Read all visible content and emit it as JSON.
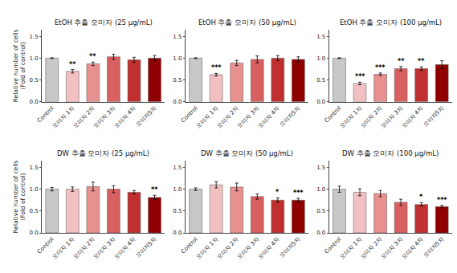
{
  "chart_data": [
    {
      "type": "bar",
      "title": "EtOH 추출 오미자 (25 μg/mL)",
      "categories": [
        "Control",
        "오미자 1차",
        "오미자 2차",
        "오미자 3차",
        "오미자 4차",
        "오미자5차"
      ],
      "values": [
        1.0,
        0.7,
        0.87,
        1.03,
        0.96,
        1.0
      ],
      "errors": [
        0.01,
        0.04,
        0.04,
        0.06,
        0.06,
        0.06
      ],
      "significance": [
        null,
        "**",
        "**",
        null,
        null,
        null
      ],
      "colors": [
        "#c8c8c8",
        "#f2c0c0",
        "#e89090",
        "#d96060",
        "#c03030",
        "#900000"
      ],
      "ylabel": "Relative number of cells\n(Fold of control)",
      "ylim": [
        0.0,
        1.65
      ],
      "yticks": [
        {
          "value": 0.0,
          "label": "0.0"
        },
        0.5,
        {
          "value": 1.0,
          "label": "1.0"
        },
        1.5
      ],
      "grid": false
    },
    {
      "type": "bar",
      "title": "EtOH 추출 오미자 (50 μg/mL)",
      "categories": [
        "Control",
        "오미자 1차",
        "오미자 2차",
        "오미자 3차",
        "오미자 4차",
        "오미자5차"
      ],
      "values": [
        1.0,
        0.62,
        0.89,
        0.97,
        1.0,
        0.97
      ],
      "errors": [
        0.01,
        0.03,
        0.06,
        0.08,
        0.06,
        0.06
      ],
      "significance": [
        null,
        "***",
        null,
        null,
        null,
        null
      ],
      "colors": [
        "#c8c8c8",
        "#f2c0c0",
        "#e89090",
        "#d96060",
        "#c03030",
        "#900000"
      ],
      "ylim": [
        0.0,
        1.65
      ],
      "yticks": [
        {
          "value": 0.0,
          "label": "0.0"
        },
        0.5,
        {
          "value": 1.0,
          "label": "1.0"
        },
        1.5
      ],
      "grid": false
    },
    {
      "type": "bar",
      "title": "EtOH 추출 오미자 (100 μg/mL)",
      "categories": [
        "Control",
        "오미자 1차",
        "오미자 2차",
        "오미자 3차",
        "오미자 4차",
        "오미자5차"
      ],
      "values": [
        1.0,
        0.42,
        0.63,
        0.76,
        0.76,
        0.85
      ],
      "errors": [
        0.01,
        0.03,
        0.03,
        0.05,
        0.04,
        0.09
      ],
      "significance": [
        null,
        "***",
        "***",
        "**",
        "**",
        null
      ],
      "colors": [
        "#c8c8c8",
        "#f2c0c0",
        "#e89090",
        "#d96060",
        "#c03030",
        "#900000"
      ],
      "ylim": [
        0.0,
        1.65
      ],
      "yticks": [
        {
          "value": 0.0,
          "label": "0.0"
        },
        0.5,
        {
          "value": 1.0,
          "label": "1.0"
        },
        1.5
      ],
      "grid": false
    },
    {
      "type": "bar",
      "title": "DW 추출 오미자 (25 μg/mL)",
      "categories": [
        "Control",
        "오미자 1차",
        "오미자 2차",
        "오미자 3차",
        "오미자 4차",
        "오미자5차"
      ],
      "values": [
        1.0,
        1.0,
        1.06,
        1.0,
        0.93,
        0.81
      ],
      "errors": [
        0.04,
        0.05,
        0.1,
        0.08,
        0.04,
        0.05
      ],
      "significance": [
        null,
        null,
        null,
        null,
        null,
        "**"
      ],
      "colors": [
        "#c8c8c8",
        "#f2c0c0",
        "#e89090",
        "#d96060",
        "#c03030",
        "#900000"
      ],
      "ylabel": "Relative number of cells\n(Fold of control)",
      "ylim": [
        0.0,
        1.65
      ],
      "yticks": [
        {
          "value": 0.0,
          "label": "0.0"
        },
        0.5,
        {
          "value": 1.0,
          "label": "1.0"
        },
        1.5
      ],
      "grid": false
    },
    {
      "type": "bar",
      "title": "DW 추출 오미자 (50 μg/mL)",
      "categories": [
        "Control",
        "오미자 1차",
        "오미자 2차",
        "오미자 3차",
        "오미자 4차",
        "오미자5차"
      ],
      "values": [
        1.0,
        1.1,
        1.05,
        0.83,
        0.75,
        0.75
      ],
      "errors": [
        0.03,
        0.07,
        0.09,
        0.06,
        0.05,
        0.04
      ],
      "significance": [
        null,
        null,
        null,
        null,
        "*",
        "***"
      ],
      "colors": [
        "#c8c8c8",
        "#f2c0c0",
        "#e89090",
        "#d96060",
        "#c03030",
        "#900000"
      ],
      "ylim": [
        0.0,
        1.65
      ],
      "yticks": [
        {
          "value": 0.0,
          "label": "0.0"
        },
        0.5,
        {
          "value": 1.0,
          "label": "1.0"
        },
        1.5
      ],
      "grid": false
    },
    {
      "type": "bar",
      "title": "DW 추출 오미자 (100 μg/mL)",
      "categories": [
        "Control",
        "오미자 1차",
        "오미자 2차",
        "오미자 3차",
        "오미자 4차",
        "오미자5차"
      ],
      "values": [
        1.0,
        0.93,
        0.9,
        0.7,
        0.65,
        0.6
      ],
      "errors": [
        0.07,
        0.08,
        0.07,
        0.07,
        0.04,
        0.03
      ],
      "significance": [
        null,
        null,
        null,
        null,
        "*",
        "***"
      ],
      "colors": [
        "#c8c8c8",
        "#f2c0c0",
        "#e89090",
        "#d96060",
        "#c03030",
        "#900000"
      ],
      "ylim": [
        0.0,
        1.65
      ],
      "yticks": [
        {
          "value": 0.0,
          "label": "0.0"
        },
        0.5,
        {
          "value": 1.0,
          "label": "1.0"
        },
        1.5
      ],
      "grid": false
    }
  ]
}
